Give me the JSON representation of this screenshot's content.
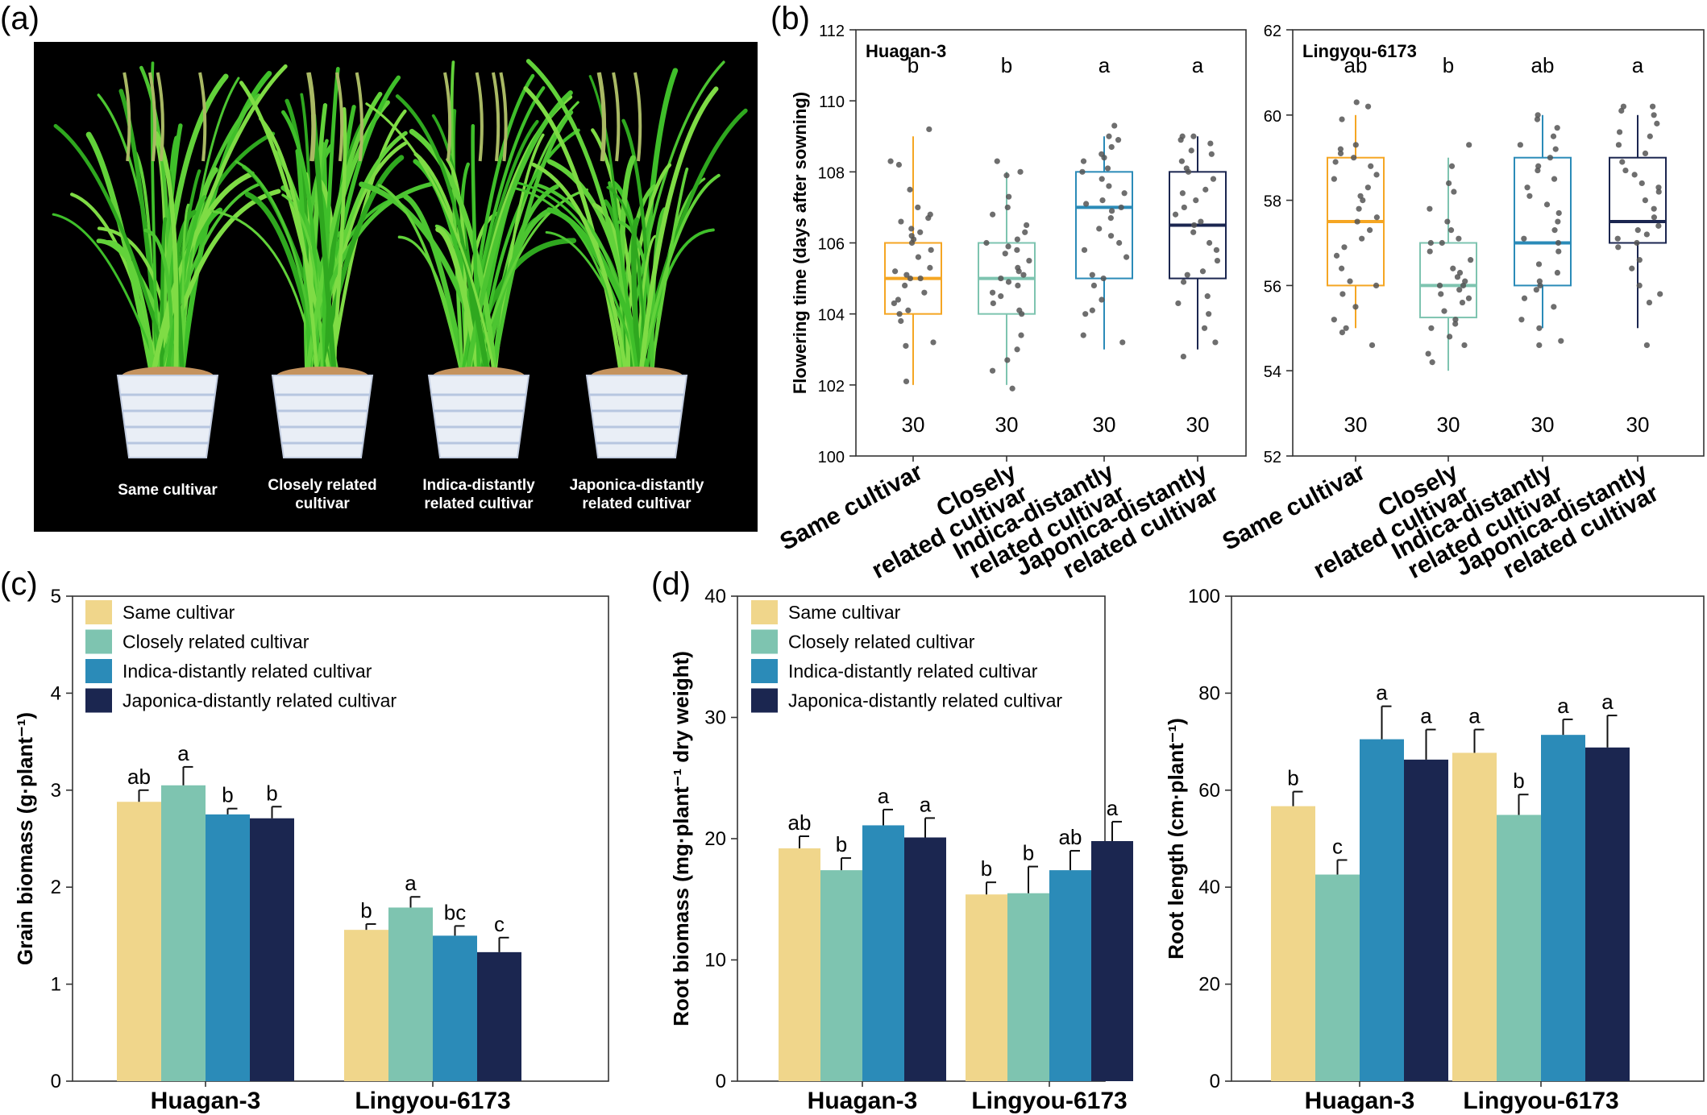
{
  "panels": {
    "a": "(a)",
    "b": "(b)",
    "c": "(c)",
    "d": "(d)"
  },
  "photo": {
    "labels": [
      "Same cultivar",
      "Closely related\ncultivar",
      "Indica-distantly\nrelated cultivar",
      "Japonica-distantly\nrelated cultivar"
    ]
  },
  "colors": {
    "same": "#f0d68b",
    "closely": "#7ec4b0",
    "indica": "#2b8bb8",
    "japonica": "#1b2650",
    "box_same": "#f5a623",
    "box_closely": "#7ec4b0",
    "box_indica": "#2b8bb8",
    "box_japonica": "#1b2650"
  },
  "chart_data": [
    {
      "id": "b-left",
      "type": "box",
      "title": "Huagan-3",
      "ylabel": "Flowering time (days after sowning)",
      "ylim": [
        100,
        112
      ],
      "yticks": [
        100,
        102,
        104,
        106,
        108,
        110,
        112
      ],
      "categories": [
        "Same cultivar",
        "Closely\nrelated cultivar",
        "Indica-distantly\nrelated cultivar",
        "Japonica-distantly\nrelated cultivar"
      ],
      "boxes": [
        {
          "min": 102,
          "q1": 104,
          "median": 105,
          "q3": 106,
          "max": 109
        },
        {
          "min": 102,
          "q1": 104,
          "median": 105,
          "q3": 106,
          "max": 108
        },
        {
          "min": 103,
          "q1": 105,
          "median": 107,
          "q3": 108,
          "max": 109
        },
        {
          "min": 103,
          "q1": 105,
          "median": 106.5,
          "q3": 108,
          "max": 109
        }
      ],
      "letters": [
        "b",
        "b",
        "a",
        "a"
      ],
      "n": [
        "30",
        "30",
        "30",
        "30"
      ],
      "points": [
        [
          102.1,
          103.1,
          103.2,
          103.8,
          104.0,
          104.1,
          104.3,
          104.4,
          104.6,
          104.8,
          105.0,
          105.0,
          105.1,
          105.2,
          105.3,
          105.6,
          105.8,
          106.0,
          106.1,
          106.2,
          106.3,
          106.4,
          106.6,
          106.7,
          106.8,
          107.0,
          107.5,
          108.2,
          108.3,
          109.2
        ],
        [
          101.9,
          102.4,
          102.7,
          103.0,
          103.4,
          104.0,
          104.1,
          104.3,
          104.5,
          104.6,
          104.8,
          104.9,
          105.0,
          105.1,
          105.2,
          105.3,
          105.5,
          105.7,
          105.8,
          105.9,
          106.0,
          106.1,
          106.3,
          106.5,
          106.8,
          107.0,
          107.3,
          107.9,
          108.0,
          108.3
        ],
        [
          103.2,
          103.4,
          104.0,
          104.1,
          104.4,
          104.8,
          105.0,
          105.1,
          105.6,
          105.8,
          106.0,
          106.2,
          106.4,
          106.7,
          106.9,
          107.0,
          107.1,
          107.2,
          107.4,
          107.6,
          107.8,
          108.0,
          108.1,
          108.3,
          108.4,
          108.5,
          108.7,
          108.9,
          109.0,
          109.3
        ],
        [
          102.8,
          103.2,
          103.6,
          104.0,
          104.3,
          104.5,
          104.9,
          105.1,
          105.2,
          105.5,
          105.8,
          106.0,
          106.3,
          106.5,
          106.6,
          106.8,
          107.0,
          107.2,
          107.4,
          107.5,
          107.8,
          108.0,
          108.1,
          108.3,
          108.5,
          108.6,
          108.8,
          108.9,
          109.0,
          109.0
        ]
      ]
    },
    {
      "id": "b-right",
      "type": "box",
      "title": "Lingyou-6173",
      "ylabel": "",
      "ylim": [
        52,
        62
      ],
      "yticks": [
        52,
        54,
        56,
        58,
        60,
        62
      ],
      "categories": [
        "Same cultivar",
        "Closely\nrelated cultivar",
        "Indica-distantly\nrelated cultivar",
        "Japonica-distantly\nrelated cultivar"
      ],
      "boxes": [
        {
          "min": 55,
          "q1": 56,
          "median": 57.5,
          "q3": 59,
          "max": 60
        },
        {
          "min": 54,
          "q1": 55.25,
          "median": 56,
          "q3": 57,
          "max": 59
        },
        {
          "min": 55,
          "q1": 56,
          "median": 57,
          "q3": 59,
          "max": 60
        },
        {
          "min": 55,
          "q1": 57,
          "median": 57.5,
          "q3": 59,
          "max": 60
        }
      ],
      "letters": [
        "ab",
        "b",
        "ab",
        "a"
      ],
      "n": [
        "30",
        "30",
        "30",
        "30"
      ],
      "points": [
        [
          54.6,
          54.9,
          55.0,
          55.2,
          55.5,
          55.8,
          56.0,
          56.1,
          56.4,
          56.7,
          56.9,
          57.1,
          57.3,
          57.5,
          57.6,
          57.8,
          58.0,
          58.1,
          58.3,
          58.5,
          58.6,
          58.8,
          58.9,
          59.0,
          59.1,
          59.2,
          59.3,
          59.9,
          60.2,
          60.3
        ],
        [
          54.2,
          54.4,
          54.6,
          54.8,
          55.0,
          55.1,
          55.2,
          55.4,
          55.6,
          55.7,
          55.8,
          55.9,
          56.0,
          56.0,
          56.1,
          56.2,
          56.3,
          56.4,
          56.6,
          56.8,
          57.0,
          57.0,
          57.1,
          57.3,
          57.5,
          57.8,
          58.2,
          58.4,
          58.8,
          59.3
        ],
        [
          54.6,
          54.7,
          55.0,
          55.2,
          55.5,
          55.7,
          55.9,
          56.0,
          56.1,
          56.3,
          56.5,
          56.8,
          57.0,
          57.1,
          57.3,
          57.5,
          57.7,
          57.9,
          58.1,
          58.3,
          58.5,
          58.7,
          58.8,
          59.0,
          59.2,
          59.3,
          59.5,
          59.7,
          59.9,
          60.0
        ],
        [
          54.6,
          55.6,
          55.8,
          56.0,
          56.4,
          56.6,
          56.9,
          57.0,
          57.1,
          57.2,
          57.3,
          57.4,
          57.6,
          57.8,
          58.0,
          58.2,
          58.3,
          58.4,
          58.6,
          58.7,
          58.9,
          59.1,
          59.3,
          59.5,
          59.6,
          59.8,
          60.0,
          60.1,
          60.2,
          60.2
        ]
      ]
    },
    {
      "id": "c",
      "type": "bar",
      "ylabel": "Grain biomass (g·plant⁻¹)",
      "ylim": [
        0,
        5
      ],
      "yticks": [
        0,
        1,
        2,
        3,
        4,
        5
      ],
      "groups": [
        "Huagan-3",
        "Lingyou-6173"
      ],
      "legend": [
        "Same cultivar",
        "Closely related cultivar",
        "Indica-distantly related cultivar",
        "Japonica-distantly related cultivar"
      ],
      "series": [
        {
          "name": "Same cultivar",
          "values": [
            2.88,
            1.56
          ],
          "errors": [
            0.12,
            0.06
          ]
        },
        {
          "name": "Closely related cultivar",
          "values": [
            3.05,
            1.79
          ],
          "errors": [
            0.19,
            0.11
          ]
        },
        {
          "name": "Indica-distantly related cultivar",
          "values": [
            2.75,
            1.5
          ],
          "errors": [
            0.06,
            0.1
          ]
        },
        {
          "name": "Japonica-distantly related cultivar",
          "values": [
            2.71,
            1.33
          ],
          "errors": [
            0.12,
            0.15
          ]
        }
      ],
      "letters": [
        [
          "ab",
          "b"
        ],
        [
          "a",
          "a"
        ],
        [
          "b",
          "bc"
        ],
        [
          "b",
          "c"
        ]
      ]
    },
    {
      "id": "d-left",
      "type": "bar",
      "ylabel": "Root biomass (mg·plant⁻¹ dry weight)",
      "ylim": [
        0,
        40
      ],
      "yticks": [
        0,
        10,
        20,
        30,
        40
      ],
      "groups": [
        "Huagan-3",
        "Lingyou-6173"
      ],
      "legend": [
        "Same cultivar",
        "Closely related cultivar",
        "Indica-distantly related cultivar",
        "Japonica-distantly related cultivar"
      ],
      "series": [
        {
          "name": "Same cultivar",
          "values": [
            19.2,
            15.4
          ],
          "errors": [
            1.0,
            1.0
          ]
        },
        {
          "name": "Closely related cultivar",
          "values": [
            17.4,
            15.5
          ],
          "errors": [
            1.0,
            2.2
          ]
        },
        {
          "name": "Indica-distantly related cultivar",
          "values": [
            21.1,
            17.4
          ],
          "errors": [
            1.3,
            1.6
          ]
        },
        {
          "name": "Japonica-distantly related cultivar",
          "values": [
            20.1,
            19.8
          ],
          "errors": [
            1.6,
            1.6
          ]
        }
      ],
      "letters": [
        [
          "ab",
          "b"
        ],
        [
          "b",
          "b"
        ],
        [
          "a",
          "ab"
        ],
        [
          "a",
          "a"
        ]
      ]
    },
    {
      "id": "d-right",
      "type": "bar",
      "ylabel": "Root length (cm·plant⁻¹)",
      "ylim": [
        0,
        100
      ],
      "yticks": [
        0,
        20,
        40,
        60,
        80,
        100
      ],
      "groups": [
        "Huagan-3",
        "Lingyou-6173"
      ],
      "series": [
        {
          "name": "Same cultivar",
          "values": [
            56.7,
            67.7
          ],
          "errors": [
            3.0,
            4.8
          ]
        },
        {
          "name": "Closely related cultivar",
          "values": [
            42.6,
            54.9
          ],
          "errors": [
            3.0,
            4.2
          ]
        },
        {
          "name": "Indica-distantly related cultivar",
          "values": [
            70.5,
            71.4
          ],
          "errors": [
            6.8,
            3.2
          ]
        },
        {
          "name": "Japonica-distantly related cultivar",
          "values": [
            66.3,
            68.8
          ],
          "errors": [
            6.2,
            6.6
          ]
        }
      ],
      "letters": [
        [
          "b",
          "a"
        ],
        [
          "c",
          "b"
        ],
        [
          "a",
          "a"
        ],
        [
          "a",
          "a"
        ]
      ]
    }
  ]
}
